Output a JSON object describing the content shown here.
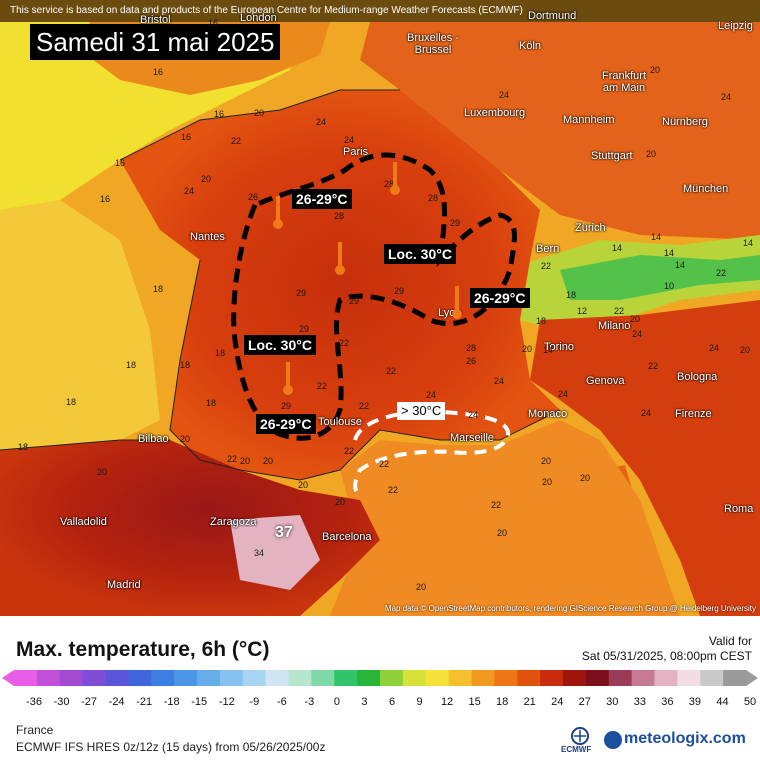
{
  "attribution_top": "This service is based on data and products of the European Centre for Medium-range Weather Forecasts (ECMWF)",
  "date_title": "Samedi 31 mai 2025",
  "cities": [
    {
      "name": "Bristol"
    },
    {
      "name": "London"
    },
    {
      "name": "Dortmund"
    },
    {
      "name": "Leipzig"
    },
    {
      "name": "Bruxelles - Brussel"
    },
    {
      "name": "Köln"
    },
    {
      "name": "Frankfurt am Main"
    },
    {
      "name": "Luxembourg"
    },
    {
      "name": "Mannheim"
    },
    {
      "name": "Nürnberg"
    },
    {
      "name": "Paris"
    },
    {
      "name": "Stuttgart"
    },
    {
      "name": "München"
    },
    {
      "name": "Nantes"
    },
    {
      "name": "Zürich"
    },
    {
      "name": "Bern"
    },
    {
      "name": "Lyon"
    },
    {
      "name": "Milano"
    },
    {
      "name": "Torino"
    },
    {
      "name": "Genova"
    },
    {
      "name": "Bologna"
    },
    {
      "name": "Monaco"
    },
    {
      "name": "Firenze"
    },
    {
      "name": "Marseille"
    },
    {
      "name": "Toulouse"
    },
    {
      "name": "Bilbao"
    },
    {
      "name": "Valladolid"
    },
    {
      "name": "Zaragoza"
    },
    {
      "name": "Barcelona"
    },
    {
      "name": "Madrid"
    },
    {
      "name": "Roma"
    }
  ],
  "annotations": [
    {
      "text": "26-29°C"
    },
    {
      "text": "Loc. 30°C"
    },
    {
      "text": "26-29°C"
    },
    {
      "text": "Loc. 30°C"
    },
    {
      "text": "26-29°C"
    },
    {
      "text": "> 30°C"
    }
  ],
  "peak_value": "37",
  "isolines": [
    "16",
    "16",
    "16",
    "16",
    "20",
    "16",
    "20",
    "16",
    "22",
    "24",
    "24",
    "24",
    "24",
    "20",
    "20",
    "18",
    "18",
    "18",
    "18",
    "18",
    "18",
    "20",
    "20",
    "22",
    "20",
    "22",
    "20",
    "20",
    "20",
    "20",
    "22",
    "22",
    "22",
    "22",
    "22",
    "24",
    "24",
    "24",
    "20",
    "20",
    "22",
    "22",
    "22",
    "22",
    "22",
    "20",
    "20",
    "20",
    "20",
    "18",
    "26",
    "28",
    "29",
    "29",
    "29",
    "29",
    "29",
    "29",
    "28",
    "28",
    "28",
    "24",
    "26",
    "24",
    "18",
    "14",
    "14",
    "14",
    "14",
    "14",
    "14",
    "12",
    "10",
    "18",
    "24",
    "24",
    "20",
    "22",
    "24",
    "34",
    "24"
  ],
  "attribution_bottom": "Map data © OpenStreetMap contributors, rendering GIScience Research Group @ Heidelberg University",
  "legend": {
    "title": "Max. temperature, 6h (°C)",
    "valid_label": "Valid for",
    "valid_date": "Sat 05/31/2025, 08:00pm CEST",
    "ticks": [
      "-36",
      "-30",
      "-27",
      "-24",
      "-21",
      "-18",
      "-15",
      "-12",
      "-9",
      "-6",
      "-3",
      "0",
      "3",
      "6",
      "9",
      "12",
      "15",
      "18",
      "21",
      "24",
      "27",
      "30",
      "33",
      "36",
      "39",
      "44",
      "50"
    ],
    "colors": [
      "#e85ee8",
      "#c24fd8",
      "#a24ad1",
      "#7f4ed6",
      "#5b56d9",
      "#3f66db",
      "#3d7fe0",
      "#4c98e6",
      "#65aeea",
      "#86c2ef",
      "#a9d5f2",
      "#cfe6f2",
      "#b7e6cf",
      "#7fd8a8",
      "#33c46b",
      "#27b63a",
      "#8ed13a",
      "#d6e23a",
      "#f5e33a",
      "#f5c02e",
      "#f29a20",
      "#ee7617",
      "#e2520f",
      "#c72d0c",
      "#9f150c",
      "#7d0f1a",
      "#9b3b58",
      "#c77a93",
      "#e5b2c3",
      "#f3dde4",
      "#c9c9c9",
      "#9a9a9a"
    ],
    "region": "France",
    "model": "ECMWF IFS HRES 0z/12z (15 days) from  05/26/2025/00z"
  },
  "logos": {
    "ecmwf": "ECMWF",
    "meteologix": "meteologix.com"
  }
}
